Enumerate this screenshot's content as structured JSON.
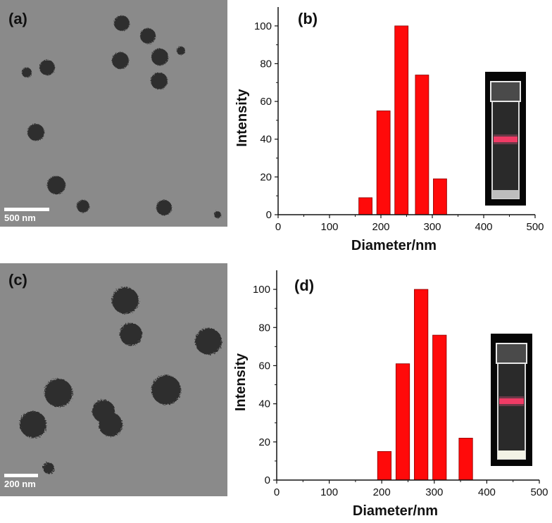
{
  "panels": {
    "a": {
      "label": "(a)",
      "scale_bar": "500 nm"
    },
    "b": {
      "label": "(b)"
    },
    "c": {
      "label": "(c)",
      "scale_bar": "200 nm"
    },
    "d": {
      "label": "(d)"
    }
  },
  "colors": {
    "bar": "#ff0a0a",
    "bar_edge": "#8a0000",
    "tem_bg": "#8a8a8a",
    "particle": "#2e2e2e"
  },
  "chart_data": [
    {
      "panel": "b",
      "type": "bar",
      "xlabel": "Diameter/nm",
      "ylabel": "Intensity",
      "xlim": [
        0,
        500
      ],
      "ylim": [
        0,
        110
      ],
      "xticks": [
        0,
        100,
        200,
        300,
        400,
        500
      ],
      "yticks": [
        0,
        20,
        40,
        60,
        80,
        100
      ],
      "x": [
        170,
        205,
        240,
        280,
        315
      ],
      "values": [
        9,
        55,
        100,
        74,
        19
      ],
      "bar_width": 26,
      "grid": false,
      "inset": "photo of cuvette with red laser beam"
    },
    {
      "panel": "d",
      "type": "bar",
      "xlabel": "Diameter/nm",
      "ylabel": "Intensity",
      "xlim": [
        0,
        500
      ],
      "ylim": [
        0,
        110
      ],
      "xticks": [
        0,
        100,
        200,
        300,
        400,
        500
      ],
      "yticks": [
        0,
        20,
        40,
        60,
        80,
        100
      ],
      "x": [
        205,
        240,
        275,
        310,
        360
      ],
      "values": [
        15,
        61,
        100,
        76,
        22
      ],
      "bar_width": 26,
      "grid": false,
      "inset": "photo of cuvette with red laser beam"
    }
  ]
}
